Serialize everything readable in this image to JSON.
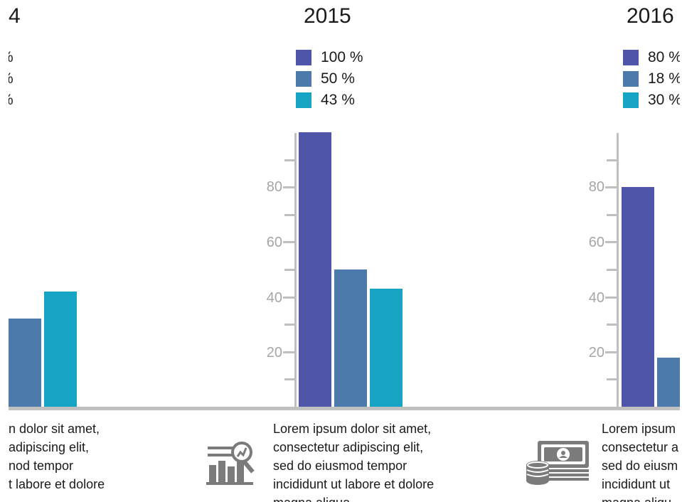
{
  "colors": {
    "series1": "#4f55a8",
    "series2": "#4c7aaa",
    "series3": "#17a3c4",
    "axis": "#bfbfbf",
    "tick_text": "#a6a6a6"
  },
  "panels": [
    {
      "year": "4",
      "legend": [
        {
          "label": "%"
        },
        {
          "label": "%"
        },
        {
          "label": "%"
        }
      ],
      "description": [
        "n dolor sit amet,",
        " adipiscing elit,",
        "nod tempor",
        "t labore et dolore",
        "."
      ],
      "icon": "none",
      "visible_ticks": []
    },
    {
      "year": "2015",
      "legend": [
        {
          "label": "100 %"
        },
        {
          "label": "50 %"
        },
        {
          "label": "43 %"
        }
      ],
      "description": [
        "Lorem ipsum dolor sit amet,",
        "consectetur adipiscing elit,",
        "sed do eiusmod tempor",
        "incididunt ut labore et dolore",
        "magna aliqua."
      ],
      "icon": "bar-chart-magnifier-icon",
      "visible_ticks": [
        "20",
        "40",
        "60",
        "80"
      ]
    },
    {
      "year": "2016",
      "legend": [
        {
          "label": "80 %"
        },
        {
          "label": "18 %"
        },
        {
          "label": "30 %"
        }
      ],
      "description": [
        "Lorem ipsum",
        "consectetur a",
        "sed do eiusm",
        "incididunt ut",
        "magna aliqu"
      ],
      "icon": "money-stack-icon",
      "visible_ticks": [
        "20",
        "40",
        "60",
        "80"
      ]
    }
  ],
  "chart_data": [
    {
      "type": "bar",
      "title": "4",
      "categories": [
        "",
        "",
        ""
      ],
      "values": [
        null,
        32,
        42
      ],
      "ylim": [
        0,
        100
      ],
      "grid": false
    },
    {
      "type": "bar",
      "title": "2015",
      "categories": [
        "",
        "",
        ""
      ],
      "values": [
        100,
        50,
        43
      ],
      "ylim": [
        0,
        100
      ],
      "yticks": [
        20,
        40,
        60,
        80
      ],
      "grid": false
    },
    {
      "type": "bar",
      "title": "2016",
      "categories": [
        "",
        "",
        ""
      ],
      "values": [
        80,
        18,
        30
      ],
      "ylim": [
        0,
        100
      ],
      "yticks": [
        20,
        40,
        60,
        80
      ],
      "grid": false
    }
  ]
}
